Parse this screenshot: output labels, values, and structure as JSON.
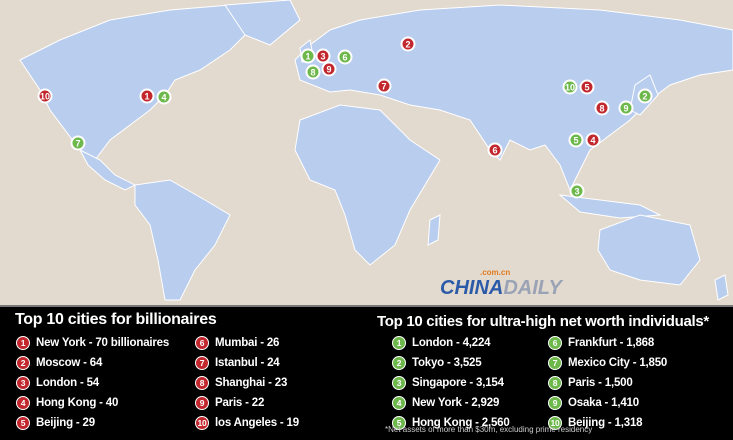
{
  "colors": {
    "billionaires": "#c1272d",
    "uhnw": "#6db84b",
    "land": "#b9cdee",
    "sea": "#e2d9cf"
  },
  "billionaires": {
    "title": "Top 10 cities for billionaires",
    "items": [
      {
        "n": "1",
        "label": "New York - 70 billionaires"
      },
      {
        "n": "2",
        "label": "Moscow - 64"
      },
      {
        "n": "3",
        "label": "London - 54"
      },
      {
        "n": "4",
        "label": "Hong Kong - 40"
      },
      {
        "n": "5",
        "label": "Beijing - 29"
      },
      {
        "n": "6",
        "label": "Mumbai - 26"
      },
      {
        "n": "7",
        "label": "Istanbul - 24"
      },
      {
        "n": "8",
        "label": "Shanghai - 23"
      },
      {
        "n": "9",
        "label": "Paris - 22"
      },
      {
        "n": "10",
        "label": "los Angeles - 19"
      }
    ]
  },
  "uhnw": {
    "title": "Top 10 cities for ultra-high net worth individuals*",
    "items": [
      {
        "n": "1",
        "label": "London - 4,224"
      },
      {
        "n": "2",
        "label": "Tokyo - 3,525"
      },
      {
        "n": "3",
        "label": "Singapore - 3,154"
      },
      {
        "n": "4",
        "label": "New York - 2,929"
      },
      {
        "n": "5",
        "label": "Hong Kong - 2,560"
      },
      {
        "n": "6",
        "label": "Frankfurt - 1,868"
      },
      {
        "n": "7",
        "label": "Mexico City - 1,850"
      },
      {
        "n": "8",
        "label": "Paris - 1,500"
      },
      {
        "n": "9",
        "label": "Osaka - 1,410"
      },
      {
        "n": "10",
        "label": "Beijing - 1,318"
      }
    ]
  },
  "footnote": "*Net assets of more than $30m, excluding prime residency",
  "watermark": {
    "top": ".com.cn",
    "main_a": "CHINA",
    "main_b": "DAILY"
  }
}
